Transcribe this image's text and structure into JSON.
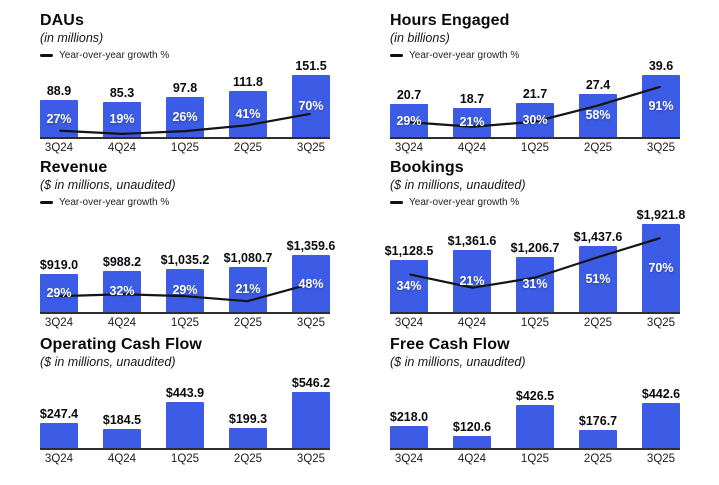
{
  "colors": {
    "background": "#ffffff",
    "bar": "#3c5ce6",
    "growth_line": "#141414",
    "axis": "#2e2e2e"
  },
  "legend_label": "Year-over-year growth %",
  "chart_data": [
    {
      "type": "bar",
      "title": "DAUs",
      "subtitle": "(in millions)",
      "legend": true,
      "categories": [
        "3Q24",
        "4Q24",
        "1Q25",
        "2Q25",
        "3Q25"
      ],
      "series": [
        {
          "name": "DAUs",
          "type": "bar",
          "values": [
            88.9,
            85.3,
            97.8,
            111.8,
            151.5
          ],
          "labels": [
            "88.9",
            "85.3",
            "97.8",
            "111.8",
            "151.5"
          ]
        },
        {
          "name": "Year-over-year growth %",
          "type": "line",
          "values": [
            27,
            19,
            26,
            41,
            70
          ],
          "labels": [
            "27%",
            "19%",
            "26%",
            "41%",
            "70%"
          ]
        }
      ],
      "ylim": [
        0,
        160
      ],
      "growth_axis_range": [
        11,
        180
      ]
    },
    {
      "type": "bar",
      "title": "Hours Engaged",
      "subtitle": "(in billions)",
      "legend": true,
      "categories": [
        "3Q24",
        "4Q24",
        "1Q25",
        "2Q25",
        "3Q25"
      ],
      "series": [
        {
          "name": "Hours Engaged",
          "type": "bar",
          "values": [
            20.7,
            18.7,
            21.7,
            27.4,
            39.6
          ],
          "labels": [
            "20.7",
            "18.7",
            "21.7",
            "27.4",
            "39.6"
          ]
        },
        {
          "name": "Year-over-year growth %",
          "type": "line",
          "values": [
            29,
            21,
            30,
            58,
            91
          ],
          "labels": [
            "29%",
            "21%",
            "30%",
            "58%",
            "91%"
          ]
        }
      ],
      "ylim": [
        0,
        42
      ],
      "growth_axis_range": [
        3,
        119
      ]
    },
    {
      "type": "bar",
      "title": "Revenue",
      "subtitle": "($ in millions, unaudited)",
      "legend": true,
      "categories": [
        "3Q24",
        "4Q24",
        "1Q25",
        "2Q25",
        "3Q25"
      ],
      "series": [
        {
          "name": "Revenue",
          "type": "bar",
          "values": [
            919.0,
            988.2,
            1035.2,
            1080.7,
            1359.6
          ],
          "labels": [
            "$919.0",
            "$988.2",
            "$1,035.2",
            "$1,080.7",
            "$1,359.6"
          ]
        },
        {
          "name": "Year-over-year growth %",
          "type": "line",
          "values": [
            29,
            32,
            29,
            21,
            48
          ],
          "labels": [
            "29%",
            "32%",
            "29%",
            "21%",
            "48%"
          ]
        }
      ],
      "ylim": [
        0,
        2150
      ],
      "growth_axis_range": [
        4,
        146
      ]
    },
    {
      "type": "bar",
      "title": "Bookings",
      "subtitle": "($ in millions, unaudited)",
      "legend": true,
      "categories": [
        "3Q24",
        "4Q24",
        "1Q25",
        "2Q25",
        "3Q25"
      ],
      "series": [
        {
          "name": "Bookings",
          "type": "bar",
          "values": [
            1128.5,
            1361.6,
            1206.7,
            1437.6,
            1921.8
          ],
          "labels": [
            "$1,128.5",
            "$1,361.6",
            "$1,206.7",
            "$1,437.6",
            "$1,921.8"
          ]
        },
        {
          "name": "Year-over-year growth %",
          "type": "line",
          "values": [
            34,
            21,
            31,
            51,
            70
          ],
          "labels": [
            "34%",
            "21%",
            "31%",
            "51%",
            "70%"
          ]
        }
      ],
      "ylim": [
        0,
        1970
      ],
      "growth_axis_range": [
        -3,
        86
      ]
    },
    {
      "type": "bar",
      "title": "Operating Cash Flow",
      "subtitle": "($ in millions, unaudited)",
      "legend": false,
      "categories": [
        "3Q24",
        "4Q24",
        "1Q25",
        "2Q25",
        "3Q25"
      ],
      "series": [
        {
          "name": "Operating Cash Flow",
          "type": "bar",
          "values": [
            247.4,
            184.5,
            443.9,
            199.3,
            546.2
          ],
          "labels": [
            "$247.4",
            "$184.5",
            "$443.9",
            "$199.3",
            "$546.2"
          ]
        }
      ],
      "ylim": [
        0,
        565
      ]
    },
    {
      "type": "bar",
      "title": "Free Cash Flow",
      "subtitle": "($ in millions, unaudited)",
      "legend": false,
      "categories": [
        "3Q24",
        "4Q24",
        "1Q25",
        "2Q25",
        "3Q25"
      ],
      "series": [
        {
          "name": "Free Cash Flow",
          "type": "bar",
          "values": [
            218.0,
            120.6,
            426.5,
            176.7,
            442.6
          ],
          "labels": [
            "$218.0",
            "$120.6",
            "$426.5",
            "$176.7",
            "$442.6"
          ]
        }
      ],
      "ylim": [
        0,
        570
      ]
    }
  ]
}
